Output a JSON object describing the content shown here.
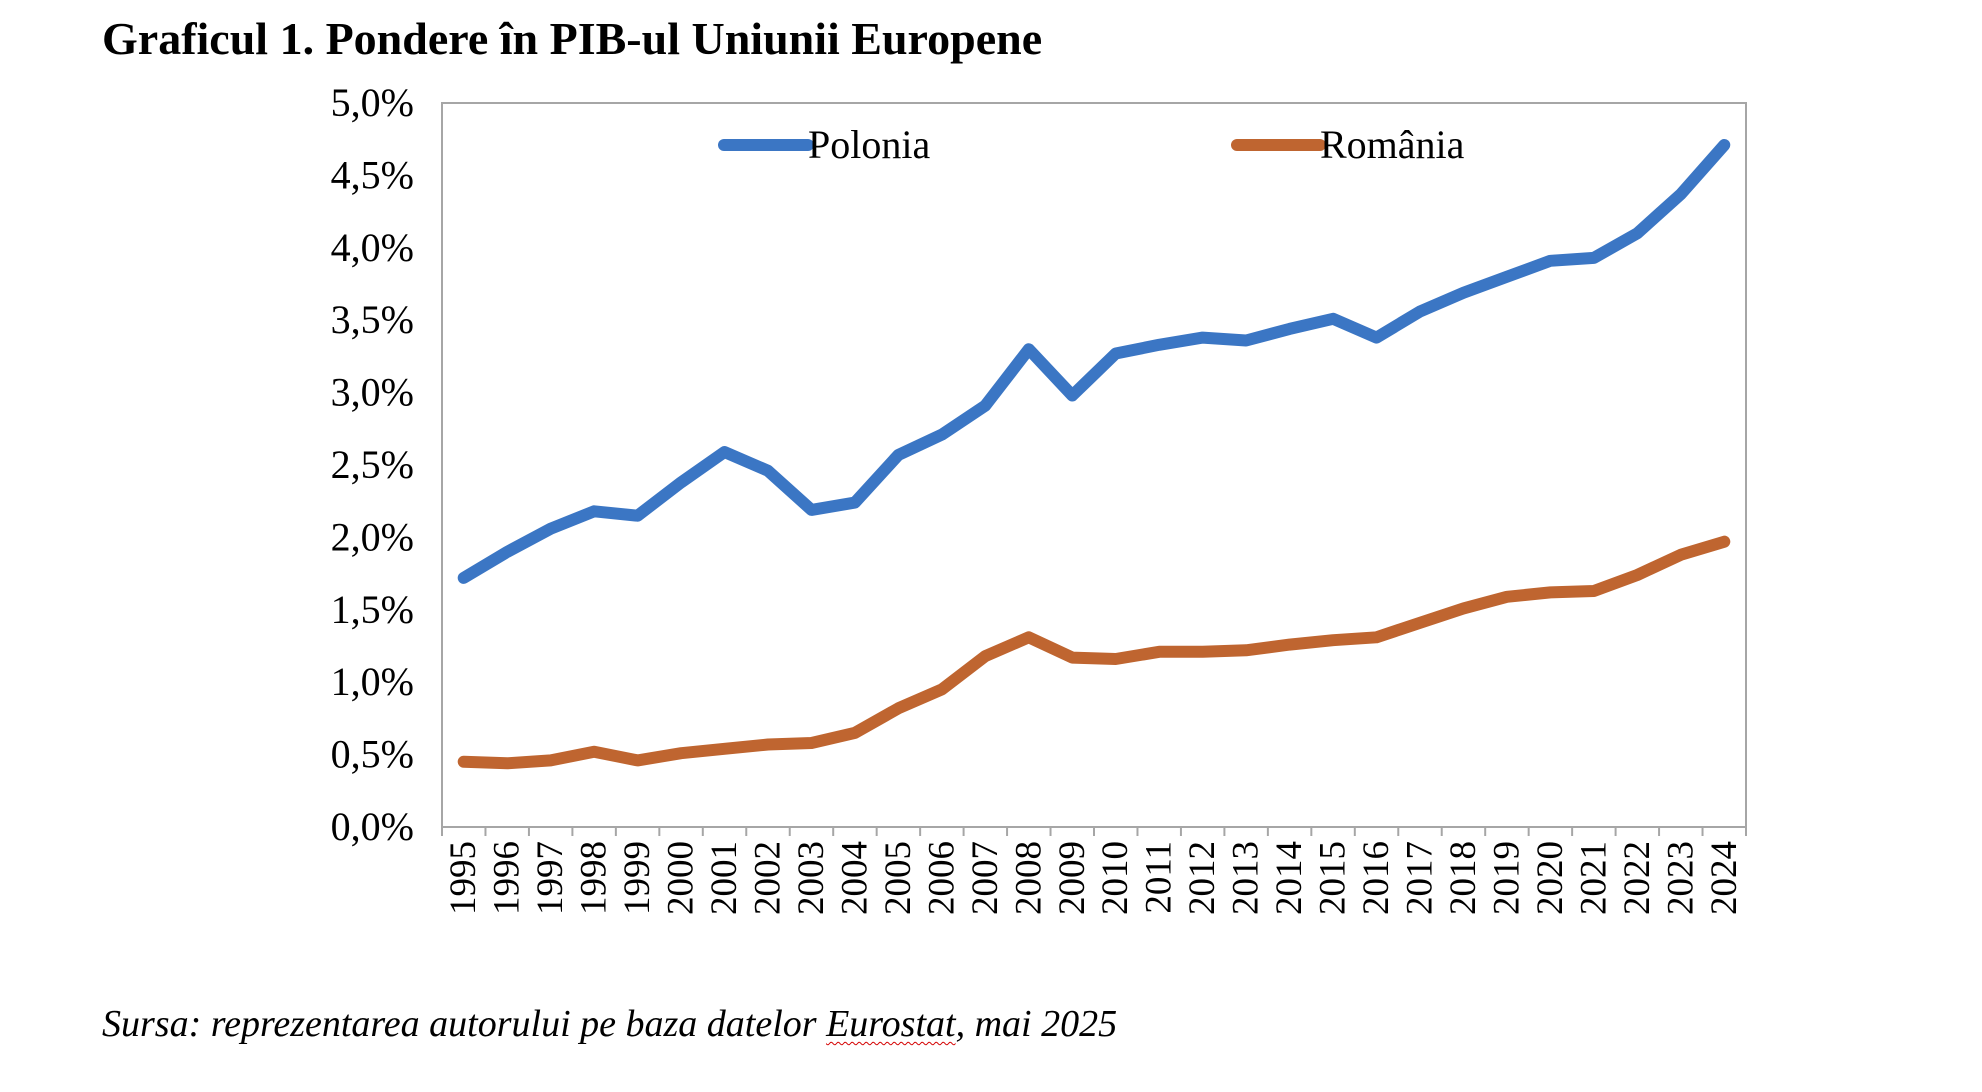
{
  "title": "Graficul 1. Pondere în PIB-ul Uniunii Europene",
  "source": {
    "prefix": "Sursa: reprezentarea autorului pe baza datelor ",
    "emphasis": "Eurostat",
    "suffix": ", mai 2025"
  },
  "colors": {
    "polonia": "#3B76C4",
    "romania": "#BF6530",
    "axis": "#A6A6A6"
  },
  "chart_data": {
    "type": "line",
    "title": "Graficul 1. Pondere în PIB-ul Uniunii Europene",
    "xlabel": "",
    "ylabel": "",
    "ylim": [
      0,
      5
    ],
    "y_ticks": [
      "0,0%",
      "0,5%",
      "1,0%",
      "1,5%",
      "2,0%",
      "2,5%",
      "3,0%",
      "3,5%",
      "4,0%",
      "4,5%",
      "5,0%"
    ],
    "grid": false,
    "legend_position": "top",
    "x": [
      "1995",
      "1996",
      "1997",
      "1998",
      "1999",
      "2000",
      "2001",
      "2002",
      "2003",
      "2004",
      "2005",
      "2006",
      "2007",
      "2008",
      "2009",
      "2010",
      "2011",
      "2012",
      "2013",
      "2014",
      "2015",
      "2016",
      "2017",
      "2018",
      "2019",
      "2020",
      "2021",
      "2022",
      "2023",
      "2024"
    ],
    "series": [
      {
        "name": "Polonia",
        "color": "#3B76C4",
        "values": [
          1.72,
          1.9,
          2.06,
          2.18,
          2.15,
          2.38,
          2.59,
          2.46,
          2.19,
          2.24,
          2.57,
          2.71,
          2.91,
          3.3,
          2.98,
          3.27,
          3.33,
          3.38,
          3.36,
          3.44,
          3.51,
          3.38,
          3.56,
          3.69,
          3.8,
          3.91,
          3.93,
          4.1,
          4.37,
          4.71
        ]
      },
      {
        "name": "România",
        "color": "#BF6530",
        "values": [
          0.45,
          0.44,
          0.46,
          0.52,
          0.46,
          0.51,
          0.54,
          0.57,
          0.58,
          0.65,
          0.82,
          0.95,
          1.18,
          1.31,
          1.17,
          1.16,
          1.21,
          1.21,
          1.22,
          1.26,
          1.29,
          1.31,
          1.41,
          1.51,
          1.59,
          1.62,
          1.63,
          1.74,
          1.88,
          1.97
        ]
      }
    ]
  }
}
